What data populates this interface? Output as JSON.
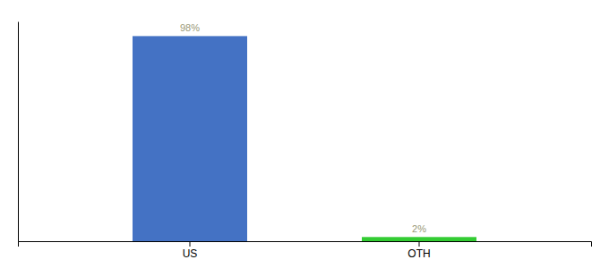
{
  "chart_data": {
    "type": "bar",
    "categories": [
      "US",
      "OTH"
    ],
    "values": [
      98,
      2
    ],
    "value_labels": [
      "98%",
      "2%"
    ],
    "colors": [
      "#4472c4",
      "#33cc33"
    ],
    "ylim": [
      0,
      105
    ],
    "data_labels": true,
    "tick_labels": "x"
  }
}
